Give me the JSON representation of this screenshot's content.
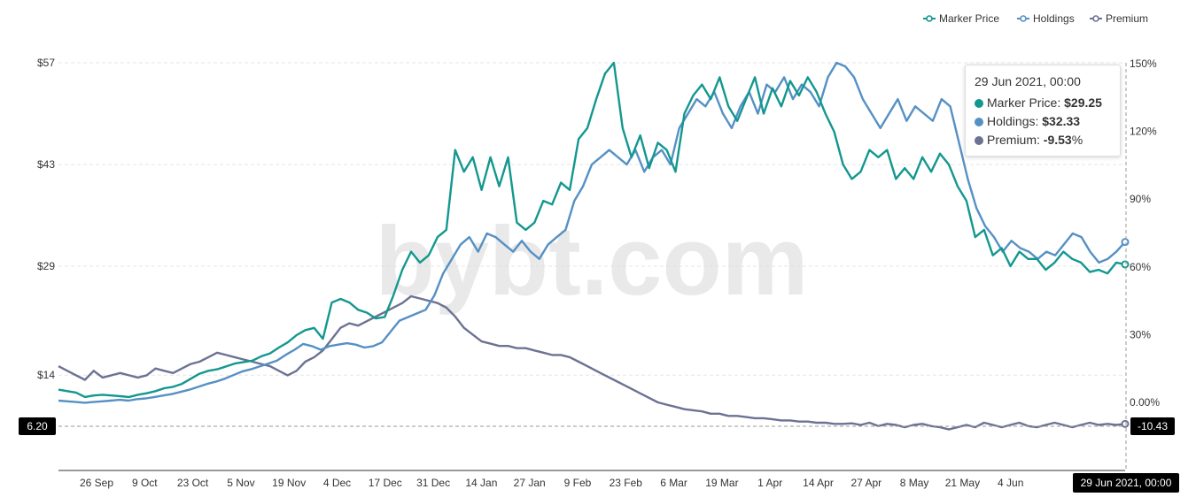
{
  "chart_data": {
    "type": "line",
    "watermark": "bybt.com",
    "legend_position": "top-right",
    "legend": [
      "Marker Price",
      "Holdings",
      "Premium"
    ],
    "colors": {
      "Marker Price": "#13978f",
      "Holdings": "#5590c4",
      "Premium": "#6c7293"
    },
    "x_tick_labels": [
      "26 Sep",
      "9 Oct",
      "23 Oct",
      "5 Nov",
      "19 Nov",
      "4 Dec",
      "17 Dec",
      "31 Dec",
      "14 Jan",
      "27 Jan",
      "9 Feb",
      "23 Feb",
      "6 Mar",
      "19 Mar",
      "1 Apr",
      "14 Apr",
      "27 Apr",
      "8 May",
      "21 May",
      "4 Jun"
    ],
    "y_left_tick_labels": [
      "$57",
      "$43",
      "$29",
      "$14"
    ],
    "y_left_tick_values": [
      57,
      43,
      29,
      14
    ],
    "y_right_tick_labels": [
      "150%",
      "120%",
      "90%",
      "60%",
      "30%",
      "0.00%"
    ],
    "y_right_tick_values": [
      150,
      120,
      90,
      60,
      30,
      0
    ],
    "ylim_left": [
      0,
      57
    ],
    "ylim_right": [
      -30,
      150
    ],
    "grid": true,
    "series": [
      {
        "name": "Marker Price",
        "axis": "left",
        "values": [
          12,
          11.8,
          11.6,
          11,
          11.2,
          11.3,
          11.2,
          11.1,
          11,
          11.3,
          11.5,
          11.8,
          12.2,
          12.4,
          12.8,
          13.5,
          14.2,
          14.6,
          14.8,
          15.2,
          15.6,
          15.8,
          16,
          16.6,
          17,
          17.8,
          18.5,
          19.5,
          20.2,
          20.5,
          19,
          24,
          24.5,
          24,
          23,
          22.6,
          21.8,
          22,
          25,
          28.5,
          31,
          29.5,
          30.5,
          33,
          34,
          45,
          42,
          44,
          39.5,
          44,
          40,
          44,
          35,
          34,
          35,
          38,
          37.5,
          40.5,
          39.5,
          46.5,
          48,
          52,
          55.5,
          57,
          48,
          44,
          47,
          42.5,
          46,
          45,
          42,
          50,
          52.5,
          54,
          52,
          55,
          51,
          49,
          52,
          55,
          50,
          53.5,
          51,
          54.5,
          52.5,
          55,
          53,
          50,
          47.5,
          43,
          41,
          42,
          45,
          44,
          45,
          41,
          42.5,
          41,
          44,
          42,
          44.5,
          43,
          40,
          38,
          33,
          34,
          30.5,
          31.5,
          29,
          31,
          30,
          30,
          28.5,
          29.5,
          31,
          30,
          29.5,
          28.2,
          28.5,
          28,
          29.5,
          29.25
        ]
      },
      {
        "name": "Holdings",
        "axis": "left",
        "values": [
          10.5,
          10.4,
          10.3,
          10.2,
          10.3,
          10.4,
          10.5,
          10.6,
          10.5,
          10.7,
          10.8,
          11,
          11.2,
          11.4,
          11.7,
          12,
          12.4,
          12.8,
          13.1,
          13.5,
          14,
          14.5,
          14.8,
          15.2,
          15.6,
          16,
          16.8,
          17.5,
          18.3,
          18,
          17.5,
          18,
          18.2,
          18.4,
          18.2,
          17.8,
          18,
          18.5,
          20,
          21.5,
          22,
          22.5,
          23,
          25,
          28,
          30,
          32,
          33,
          31,
          33.5,
          33,
          32,
          31,
          32.5,
          31,
          30,
          32,
          33,
          34,
          38,
          40,
          43,
          44,
          45,
          44,
          43,
          45,
          42,
          44,
          45,
          43,
          48,
          50,
          52,
          51,
          53,
          50,
          48,
          51,
          53,
          50,
          54,
          53,
          55,
          52,
          54,
          53,
          51,
          55,
          57,
          56.5,
          55,
          52,
          50,
          48,
          50,
          52,
          49,
          51,
          50,
          49,
          52,
          51,
          46,
          41,
          37,
          34.5,
          33,
          31,
          32.5,
          31.5,
          31,
          30,
          31,
          30.5,
          32,
          33.5,
          33,
          31,
          29.5,
          30,
          31,
          32.33
        ]
      },
      {
        "name": "Premium",
        "axis": "right",
        "values": [
          16,
          14,
          12,
          10,
          14,
          11,
          12,
          13,
          12,
          11,
          12,
          15,
          14,
          13,
          15,
          17,
          18,
          20,
          22,
          21,
          20,
          19,
          18,
          17,
          16,
          14,
          12,
          14,
          18,
          20,
          23,
          28,
          33,
          35,
          34,
          36,
          38,
          40,
          42,
          44,
          47,
          46,
          45,
          44,
          42,
          38,
          33,
          30,
          27,
          26,
          25,
          25,
          24,
          24,
          23,
          22,
          21,
          21,
          20,
          18,
          16,
          14,
          12,
          10,
          8,
          6,
          4,
          2,
          0,
          -1,
          -2,
          -3,
          -3.5,
          -4,
          -5,
          -5,
          -6,
          -6,
          -6.5,
          -7,
          -7,
          -7.5,
          -8,
          -8,
          -8.5,
          -8.5,
          -9,
          -9,
          -9.5,
          -9.5,
          -9.3,
          -10,
          -9,
          -10.5,
          -9.5,
          -10,
          -11,
          -10,
          -9.5,
          -10.5,
          -11,
          -12,
          -11,
          -10,
          -11,
          -9,
          -10,
          -11,
          -10,
          -9,
          -10.5,
          -11,
          -10,
          -9,
          -10,
          -11,
          -10,
          -9,
          -10,
          -9.5,
          -10,
          -9.53
        ]
      }
    ],
    "tooltip": {
      "date": "29 Jun 2021, 00:00",
      "rows": [
        {
          "label": "Marker Price: ",
          "value": "$29.25",
          "suffix": "",
          "color": "#13978f"
        },
        {
          "label": "Holdings: ",
          "value": "$32.33",
          "suffix": "",
          "color": "#5590c4"
        },
        {
          "label": "Premium: ",
          "value": "-9.53",
          "suffix": "%",
          "color": "#6c7293"
        }
      ]
    },
    "crosshair_date_label": "29 Jun 2021, 00:00",
    "left_marker_label": "6.20",
    "right_marker_label": "-10.43"
  }
}
